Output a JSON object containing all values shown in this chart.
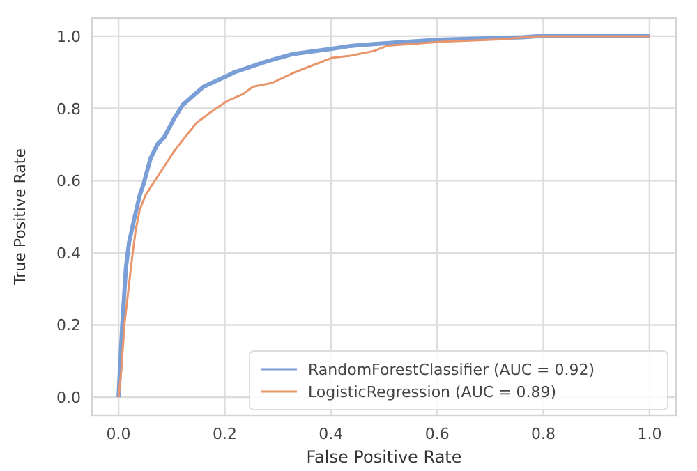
{
  "chart_data": {
    "type": "line",
    "xlabel": "False Positive Rate",
    "ylabel": "True Positive Rate",
    "xlim": [
      -0.05,
      1.05
    ],
    "ylim": [
      -0.05,
      1.05
    ],
    "xticks": [
      {
        "value": 0,
        "label": "0.0"
      },
      0.2,
      0.4,
      0.6,
      0.8,
      {
        "value": 1,
        "label": "1.0"
      }
    ],
    "yticks": [
      {
        "value": 0,
        "label": "0.0"
      },
      0.2,
      0.4,
      0.6,
      0.8,
      {
        "value": 1,
        "label": "1.0"
      }
    ],
    "grid": true,
    "legend": "bottom right",
    "marker": "none",
    "line_style": "solid",
    "series": [
      {
        "name": "RandomForestClassifier (AUC = 0.92)",
        "color": "#7a9ed6",
        "x": [
          0,
          0.007,
          0.014,
          0.02,
          0.029,
          0.04,
          0.047,
          0.06,
          0.073,
          0.086,
          0.104,
          0.121,
          0.16,
          0.204,
          0.218,
          0.279,
          0.327,
          0.402,
          0.437,
          0.48,
          0.603,
          0.76,
          0.79,
          1
        ],
        "values": [
          0,
          0.2,
          0.36,
          0.43,
          0.49,
          0.56,
          0.59,
          0.66,
          0.7,
          0.72,
          0.77,
          0.81,
          0.86,
          0.89,
          0.9,
          0.93,
          0.95,
          0.965,
          0.973,
          0.978,
          0.99,
          0.997,
          1,
          1
        ]
      },
      {
        "name": "LogisticRegression (AUC = 0.89)",
        "color": "#e8956b",
        "x": [
          0,
          0.005,
          0.011,
          0.018,
          0.025,
          0.032,
          0.04,
          0.051,
          0.064,
          0.082,
          0.104,
          0.125,
          0.147,
          0.174,
          0.204,
          0.235,
          0.253,
          0.288,
          0.332,
          0.402,
          0.437,
          0.481,
          0.507,
          0.612,
          0.718,
          0.79,
          1
        ],
        "values": [
          0,
          0.07,
          0.2,
          0.29,
          0.38,
          0.46,
          0.52,
          0.56,
          0.59,
          0.63,
          0.68,
          0.72,
          0.76,
          0.79,
          0.82,
          0.84,
          0.86,
          0.87,
          0.9,
          0.94,
          0.946,
          0.959,
          0.974,
          0.985,
          0.991,
          1,
          1
        ]
      }
    ]
  }
}
